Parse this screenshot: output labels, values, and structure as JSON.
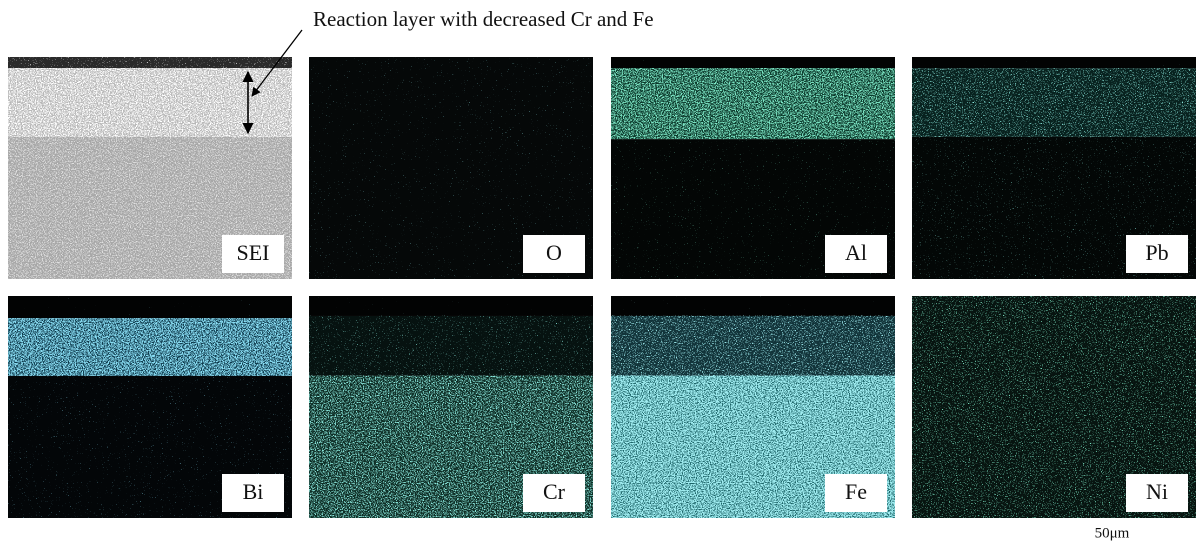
{
  "annotation": "Reaction layer with decreased Cr and Fe",
  "panels": [
    {
      "label": "SEI"
    },
    {
      "label": "O"
    },
    {
      "label": "Al"
    },
    {
      "label": "Pb"
    },
    {
      "label": "Bi"
    },
    {
      "label": "Cr"
    },
    {
      "label": "Fe"
    },
    {
      "label": "Ni"
    }
  ],
  "scale_bar": "50μm"
}
